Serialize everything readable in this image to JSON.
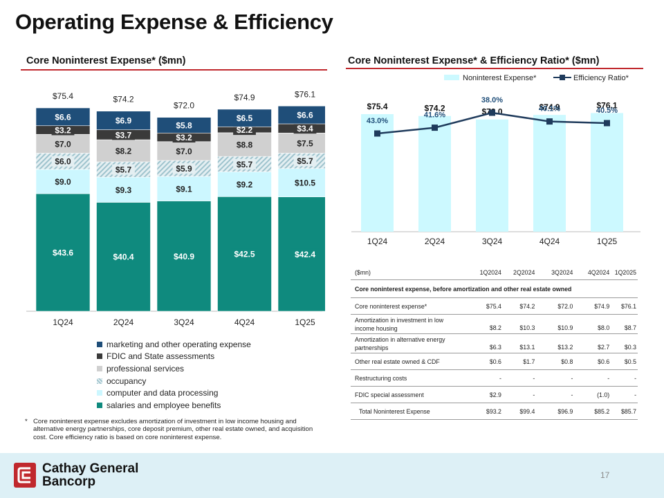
{
  "title": "Operating Expense & Efficiency",
  "left_section_title": "Core Noninterest Expense* ($mn)",
  "right_section_title": "Core Noninterest Expense* & Efficiency Ratio* ($mn)",
  "colors": {
    "marketing": "#1f4e79",
    "fdic": "#3a3a3a",
    "professional": "#d0d0d0",
    "occupancy": "#bcd6de",
    "computer": "#ccf7ff",
    "salaries": "#0f8a7e",
    "expense_bar": "#ccf9ff",
    "ratio_line": "#1f3b5c",
    "accent_rule": "#c0282d"
  },
  "chart_data": [
    {
      "type": "bar",
      "stacked": true,
      "categories": [
        "1Q24",
        "2Q24",
        "3Q24",
        "4Q24",
        "1Q25"
      ],
      "series": [
        {
          "name": "salaries and employee benefits",
          "values": [
            43.6,
            40.4,
            40.9,
            42.5,
            42.4
          ],
          "labels": [
            "$43.6",
            "$40.4",
            "$40.9",
            "$42.5",
            "$42.4"
          ]
        },
        {
          "name": "computer and data processing",
          "values": [
            9.0,
            9.3,
            9.1,
            9.2,
            10.5
          ],
          "labels": [
            "$9.0",
            "$9.3",
            "$9.1",
            "$9.2",
            "$10.5"
          ]
        },
        {
          "name": "occupancy",
          "values": [
            6.0,
            5.7,
            5.9,
            5.7,
            5.7
          ],
          "labels": [
            "$6.0",
            "$5.7",
            "$5.9",
            "$5.7",
            "$5.7"
          ]
        },
        {
          "name": "professional services",
          "values": [
            7.0,
            8.2,
            7.0,
            8.8,
            7.5
          ],
          "labels": [
            "$7.0",
            "$8.2",
            "$7.0",
            "$8.8",
            "$7.5"
          ]
        },
        {
          "name": "FDIC and State assessments",
          "values": [
            3.2,
            3.7,
            3.2,
            2.2,
            3.4
          ],
          "labels": [
            "$3.2",
            "$3.7",
            "$3.2",
            "$2.2",
            "$3.4"
          ]
        },
        {
          "name": "marketing and other operating expense",
          "values": [
            6.6,
            6.9,
            5.8,
            6.5,
            6.6
          ],
          "labels": [
            "$6.6",
            "$6.9",
            "$5.8",
            "$6.5",
            "$6.6"
          ]
        }
      ],
      "totals": [
        75.4,
        74.2,
        72.0,
        74.9,
        76.1
      ],
      "total_labels": [
        "$75.4",
        "$74.2",
        "$72.0",
        "$74.9",
        "$76.1"
      ],
      "legend_order": [
        "marketing and other operating expense",
        "FDIC and State assessments",
        "professional services",
        "occupancy",
        "computer and data processing",
        "salaries and employee benefits"
      ],
      "legend_placement": "bottom",
      "grid": false
    },
    {
      "type": "bar",
      "combo": "bar+line",
      "categories": [
        "1Q24",
        "2Q24",
        "3Q24",
        "4Q24",
        "1Q25"
      ],
      "series": [
        {
          "name": "Noninterest Expense*",
          "type": "bar",
          "values": [
            75.4,
            74.2,
            72.0,
            74.9,
            76.1
          ],
          "labels": [
            "$75.4",
            "$74.2",
            "$72.0",
            "$74.9",
            "$76.1"
          ]
        },
        {
          "name": "Efficiency Ratio*",
          "type": "line",
          "values": [
            43.0,
            41.6,
            38.0,
            40.1,
            40.5
          ],
          "labels": [
            "43.0%",
            "41.6%",
            "38.0%",
            "40.1%",
            "40.5%"
          ]
        }
      ],
      "legend_placement": "top",
      "grid": false
    }
  ],
  "table": {
    "headers": [
      "($mn)",
      "1Q2024",
      "2Q2024",
      "3Q2024",
      "4Q2024",
      "1Q2025"
    ],
    "section_label": "Core noninterest expense, before amortization and other real estate owned",
    "rows": [
      {
        "label": "Core noninterest expense*",
        "values": [
          "$75.4",
          "$74.2",
          "$72.0",
          "$74.9",
          "$76.1"
        ]
      },
      {
        "label": "Amortization in investment in low income housing",
        "values": [
          "$8.2",
          "$10.3",
          "$10.9",
          "$8.0",
          "$8.7"
        ]
      },
      {
        "label": "Amortization in alternative energy partnerships",
        "values": [
          "$6.3",
          "$13.1",
          "$13.2",
          "$2.7",
          "$0.3"
        ]
      },
      {
        "label": "Other real estate owned & CDF",
        "values": [
          "$0.6",
          "$1.7",
          "$0.8",
          "$0.6",
          "$0.5"
        ]
      },
      {
        "label": "Restructuring costs",
        "values": [
          "-",
          "-",
          "-",
          "-",
          "-"
        ]
      },
      {
        "label": "FDIC special assessment",
        "values": [
          "$2.9",
          "-",
          "-",
          "(1.0)",
          "-"
        ]
      },
      {
        "label": "Total Noninterest Expense",
        "values": [
          "$93.2",
          "$99.4",
          "$96.9",
          "$85.2",
          "$85.7"
        ]
      }
    ]
  },
  "footnote": {
    "marker": "*",
    "text": "Core noninterest expense excludes amortization of investment in low income housing and alternative energy partnerships, core deposit premium, other real estate owned, and acquisition cost. Core efficiency ratio is based on core noninterest expense."
  },
  "footer": {
    "logo_line1": "Cathay General",
    "logo_line2": "Bancorp",
    "page_number": "17"
  }
}
